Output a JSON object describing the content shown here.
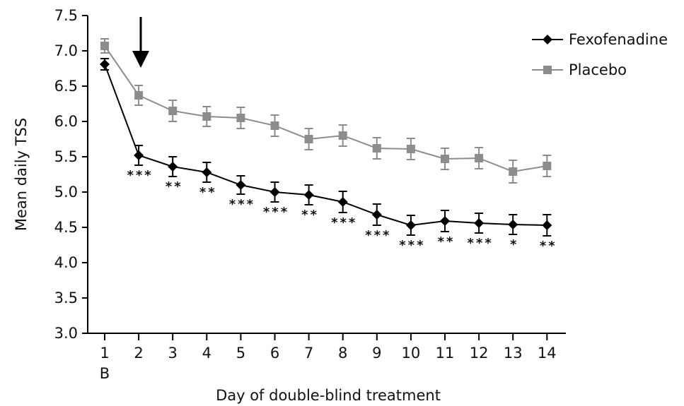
{
  "chart_data": {
    "type": "line",
    "title": "",
    "xlabel": "Day of double-blind treatment",
    "ylabel": "Mean daily TSS",
    "x": [
      1,
      2,
      3,
      4,
      5,
      6,
      7,
      8,
      9,
      10,
      11,
      12,
      13,
      14
    ],
    "x_tick_labels": [
      "1",
      "2",
      "3",
      "4",
      "5",
      "6",
      "7",
      "8",
      "9",
      "10",
      "11",
      "12",
      "13",
      "14"
    ],
    "baseline_label": "B",
    "ylim": [
      3.0,
      7.5
    ],
    "y_ticks": [
      "3.0",
      "3.5",
      "4.0",
      "4.5",
      "5.0",
      "5.5",
      "6.0",
      "6.5",
      "7.0",
      "7.5"
    ],
    "grid": false,
    "legend_position": "top-right",
    "arrow_at_day": 2,
    "series": [
      {
        "name": "Fexofenadine",
        "color": "#000000",
        "marker": "diamond",
        "values": [
          6.81,
          5.52,
          5.36,
          5.28,
          5.1,
          5.0,
          4.96,
          4.86,
          4.68,
          4.53,
          4.59,
          4.56,
          4.54,
          4.53
        ],
        "errors": [
          0.08,
          0.14,
          0.14,
          0.14,
          0.13,
          0.14,
          0.14,
          0.15,
          0.15,
          0.14,
          0.15,
          0.14,
          0.14,
          0.15
        ],
        "significance": [
          "",
          "***",
          "**",
          "**",
          "***",
          "***",
          "**",
          "***",
          "***",
          "***",
          "**",
          "***",
          "*",
          "**"
        ]
      },
      {
        "name": "Placebo",
        "color": "#8c8c8c",
        "marker": "square",
        "values": [
          7.07,
          6.37,
          6.15,
          6.07,
          6.05,
          5.94,
          5.75,
          5.8,
          5.62,
          5.61,
          5.47,
          5.48,
          5.29,
          5.37
        ],
        "errors": [
          0.1,
          0.14,
          0.15,
          0.14,
          0.15,
          0.15,
          0.15,
          0.15,
          0.15,
          0.15,
          0.15,
          0.15,
          0.16,
          0.15
        ]
      }
    ]
  }
}
